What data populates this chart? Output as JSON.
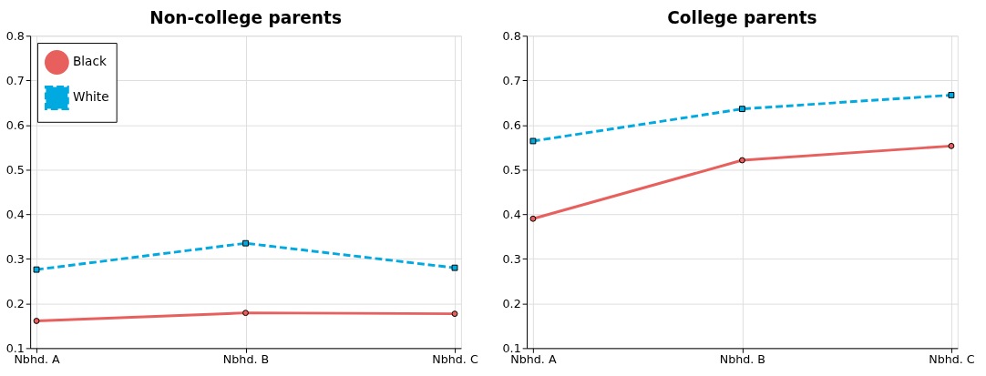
{
  "chart_data": [
    {
      "type": "line",
      "title": "Non-college parents",
      "categories": [
        "Nbhd. A",
        "Nbhd. B",
        "Nbhd. C"
      ],
      "ylim": [
        0.1,
        0.8
      ],
      "yticks": [
        0.1,
        0.2,
        0.3,
        0.4,
        0.5,
        0.6,
        0.7,
        0.8
      ],
      "grid": true,
      "legend": "top left",
      "series": [
        {
          "name": "Black",
          "color": "#e8605d",
          "values": [
            0.161,
            0.179,
            0.177
          ],
          "marker": "circle",
          "line_style": "solid"
        },
        {
          "name": "White",
          "color": "#00a9e0",
          "values": [
            0.276,
            0.335,
            0.28
          ],
          "marker": "square",
          "line_style": "dashed"
        }
      ]
    },
    {
      "type": "line",
      "title": "College parents",
      "categories": [
        "Nbhd. A",
        "Nbhd. B",
        "Nbhd. C"
      ],
      "ylim": [
        0.1,
        0.8
      ],
      "yticks": [
        0.1,
        0.2,
        0.3,
        0.4,
        0.5,
        0.6,
        0.7,
        0.8
      ],
      "grid": true,
      "legend": false,
      "series": [
        {
          "name": "Black",
          "color": "#e8605d",
          "values": [
            0.39,
            0.521,
            0.553
          ],
          "marker": "circle",
          "line_style": "solid"
        },
        {
          "name": "White",
          "color": "#00a9e0",
          "values": [
            0.564,
            0.636,
            0.667
          ],
          "marker": "square",
          "line_style": "dashed"
        }
      ]
    }
  ]
}
